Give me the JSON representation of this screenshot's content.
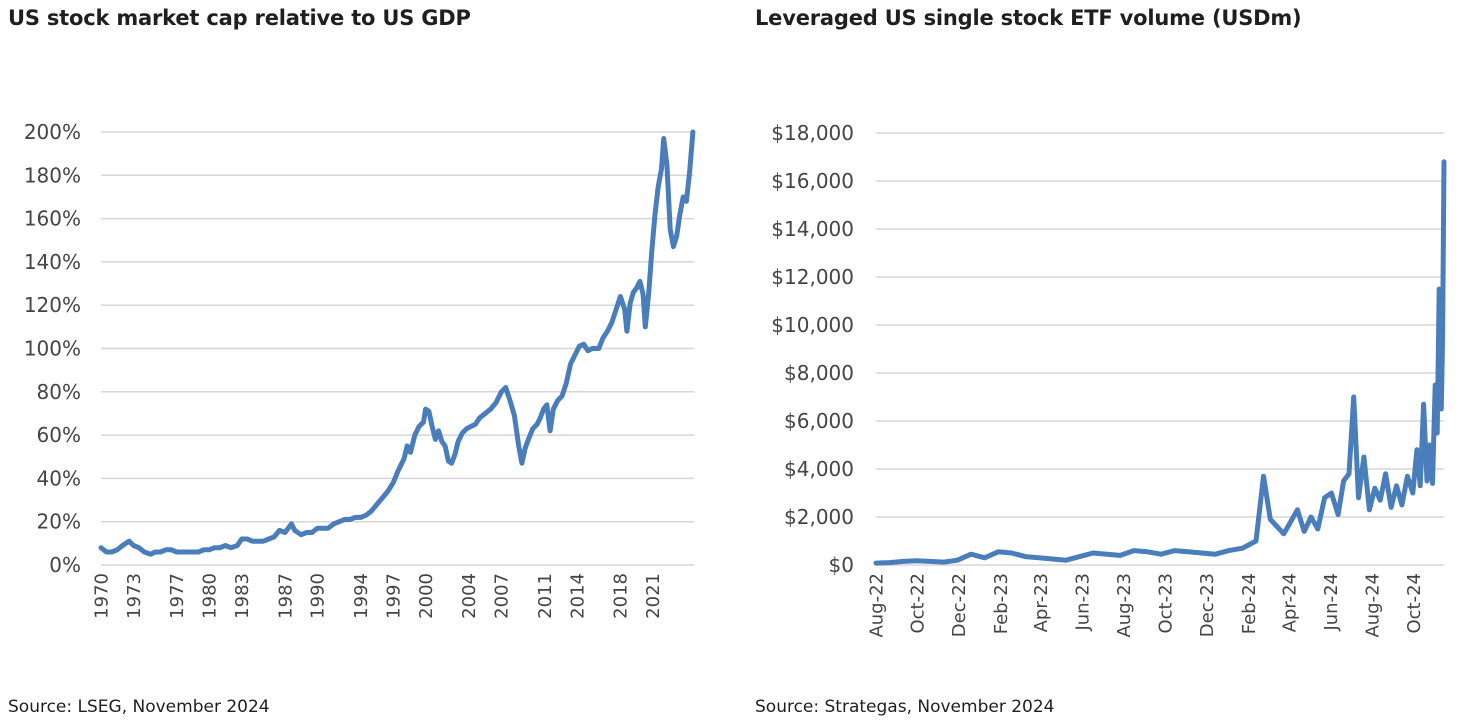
{
  "chart_data": [
    {
      "type": "line",
      "title": "US stock market cap relative to US GDP",
      "source": "Source: LSEG, November 2024",
      "xlabel": "",
      "ylabel": "",
      "ylim": [
        0,
        200
      ],
      "y_ticks": [
        "0%",
        "20%",
        "40%",
        "60%",
        "80%",
        "100%",
        "120%",
        "140%",
        "160%",
        "180%",
        "200%"
      ],
      "x_ticks": [
        "1970",
        "1973",
        "1977",
        "1980",
        "1983",
        "1987",
        "1990",
        "1994",
        "1997",
        "2000",
        "2004",
        "2007",
        "2011",
        "2014",
        "2018",
        "2021"
      ],
      "xlim": [
        1970,
        2024.8
      ],
      "grid": true,
      "color": "#4a7ebb",
      "series": [
        {
          "x": [
            1970.0,
            1970.5,
            1971.0,
            1971.5,
            1972.0,
            1972.6,
            1973.0,
            1973.5,
            1974.0,
            1974.6,
            1975.0,
            1975.5,
            1976.0,
            1976.5,
            1977.0,
            1977.5,
            1978.0,
            1978.5,
            1979.0,
            1979.5,
            1980.0,
            1980.5,
            1981.0,
            1981.5,
            1982.0,
            1982.6,
            1983.0,
            1983.5,
            1984.0,
            1984.5,
            1985.0,
            1985.5,
            1986.0,
            1986.5,
            1987.0,
            1987.6,
            1987.9,
            1988.5,
            1989.0,
            1989.5,
            1990.0,
            1990.6,
            1991.0,
            1991.5,
            1992.0,
            1992.5,
            1993.0,
            1993.5,
            1994.0,
            1994.5,
            1995.0,
            1995.5,
            1996.0,
            1996.5,
            1997.0,
            1997.5,
            1998.0,
            1998.3,
            1998.6,
            1999.0,
            1999.4,
            1999.8,
            2000.0,
            2000.3,
            2000.6,
            2000.9,
            2001.2,
            2001.5,
            2001.8,
            2002.1,
            2002.4,
            2002.7,
            2003.0,
            2003.4,
            2003.8,
            2004.2,
            2004.6,
            2005.0,
            2005.5,
            2006.0,
            2006.5,
            2007.0,
            2007.4,
            2007.8,
            2008.2,
            2008.6,
            2008.9,
            2009.2,
            2009.5,
            2009.9,
            2010.3,
            2010.6,
            2010.9,
            2011.2,
            2011.5,
            2011.8,
            2012.2,
            2012.6,
            2013.0,
            2013.4,
            2013.8,
            2014.2,
            2014.6,
            2015.0,
            2015.4,
            2015.7,
            2016.0,
            2016.4,
            2016.8,
            2017.2,
            2017.6,
            2018.0,
            2018.4,
            2018.6,
            2018.9,
            2019.2,
            2019.5,
            2019.8,
            2020.1,
            2020.3,
            2020.6,
            2020.9,
            2021.2,
            2021.5,
            2021.8,
            2022.0,
            2022.3,
            2022.6,
            2022.9,
            2023.2,
            2023.5,
            2023.8,
            2024.1,
            2024.4,
            2024.7
          ],
          "y": [
            8,
            6,
            6,
            7,
            9,
            11,
            9,
            8,
            6,
            5,
            6,
            6,
            7,
            7,
            6,
            6,
            6,
            6,
            6,
            7,
            7,
            8,
            8,
            9,
            8,
            9,
            12,
            12,
            11,
            11,
            11,
            12,
            13,
            16,
            15,
            19,
            16,
            14,
            15,
            15,
            17,
            17,
            17,
            19,
            20,
            21,
            21,
            22,
            22,
            23,
            25,
            28,
            31,
            34,
            38,
            44,
            49,
            55,
            52,
            60,
            64,
            66,
            72,
            71,
            64,
            58,
            62,
            57,
            55,
            48,
            47,
            51,
            57,
            61,
            63,
            64,
            65,
            68,
            70,
            72,
            75,
            80,
            82,
            76,
            69,
            55,
            47,
            54,
            58,
            63,
            65,
            68,
            72,
            74,
            62,
            72,
            76,
            78,
            84,
            93,
            97,
            101,
            102,
            99,
            100,
            100,
            100,
            105,
            108,
            112,
            118,
            124,
            118,
            108,
            121,
            126,
            128,
            131,
            125,
            110,
            125,
            145,
            162,
            175,
            183,
            197,
            185,
            155,
            147,
            152,
            162,
            170,
            168,
            182,
            200
          ]
        }
      ]
    },
    {
      "type": "line",
      "title": "Leveraged US single stock ETF volume (USDm)",
      "source": "Source: Strategas, November 2024",
      "xlabel": "",
      "ylabel": "",
      "ylim": [
        0,
        18000
      ],
      "y_ticks": [
        "$0",
        "$2,000",
        "$4,000",
        "$6,000",
        "$8,000",
        "$10,000",
        "$12,000",
        "$14,000",
        "$16,000",
        "$18,000"
      ],
      "x_ticks": [
        "Aug-22",
        "Oct-22",
        "Dec-22",
        "Feb-23",
        "Apr-23",
        "Jun-23",
        "Aug-23",
        "Oct-23",
        "Dec-23",
        "Feb-24",
        "Apr-24",
        "Jun-24",
        "Aug-24",
        "Oct-24"
      ],
      "xlim": [
        "2022-08-01",
        "2024-11-15"
      ],
      "grid": true,
      "color": "#4a7ebb",
      "series": [
        {
          "x": [
            "2022-08-01",
            "2022-08-21",
            "2022-09-10",
            "2022-09-30",
            "2022-10-20",
            "2022-11-09",
            "2022-11-29",
            "2022-12-19",
            "2023-01-08",
            "2023-01-28",
            "2023-02-17",
            "2023-03-09",
            "2023-03-29",
            "2023-04-18",
            "2023-05-08",
            "2023-05-28",
            "2023-06-17",
            "2023-07-07",
            "2023-07-27",
            "2023-08-16",
            "2023-09-05",
            "2023-09-25",
            "2023-10-15",
            "2023-11-04",
            "2023-11-24",
            "2023-12-14",
            "2024-01-03",
            "2024-01-23",
            "2024-02-12",
            "2024-02-23",
            "2024-03-04",
            "2024-03-14",
            "2024-03-24",
            "2024-04-03",
            "2024-04-13",
            "2024-04-23",
            "2024-05-03",
            "2024-05-13",
            "2024-05-23",
            "2024-06-02",
            "2024-06-12",
            "2024-06-20",
            "2024-06-28",
            "2024-07-05",
            "2024-07-12",
            "2024-07-20",
            "2024-07-28",
            "2024-08-05",
            "2024-08-13",
            "2024-08-21",
            "2024-08-29",
            "2024-09-06",
            "2024-09-14",
            "2024-09-22",
            "2024-09-30",
            "2024-10-06",
            "2024-10-11",
            "2024-10-16",
            "2024-10-21",
            "2024-10-25",
            "2024-10-29",
            "2024-11-02",
            "2024-11-05",
            "2024-11-08",
            "2024-11-11",
            "2024-11-13",
            "2024-11-15"
          ],
          "y": [
            80,
            100,
            150,
            180,
            150,
            120,
            200,
            450,
            300,
            550,
            500,
            350,
            300,
            250,
            200,
            350,
            500,
            450,
            400,
            600,
            550,
            450,
            600,
            550,
            500,
            450,
            600,
            700,
            1000,
            3700,
            1900,
            1600,
            1300,
            1800,
            2300,
            1400,
            2000,
            1500,
            2800,
            3000,
            2100,
            3500,
            3800,
            7000,
            2800,
            4500,
            2300,
            3200,
            2700,
            3800,
            2400,
            3300,
            2500,
            3700,
            3000,
            4800,
            3300,
            6700,
            3500,
            5000,
            3400,
            7500,
            5500,
            11500,
            6500,
            9500,
            16800
          ]
        }
      ]
    }
  ]
}
